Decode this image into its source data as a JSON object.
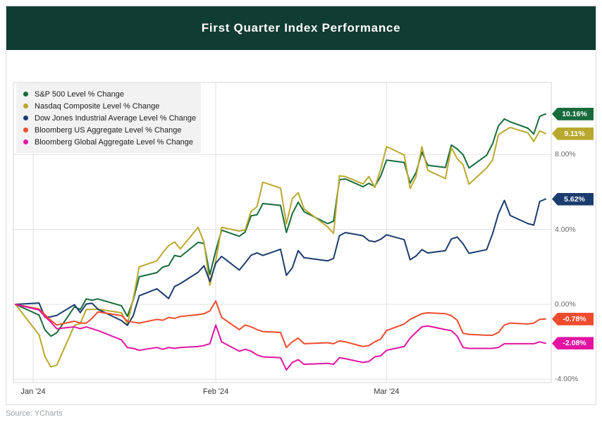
{
  "header": {
    "title": "First Quarter Index Performance",
    "bg_color": "#113c31",
    "text_color": "#ffffff"
  },
  "source": {
    "text": "Source: YCharts"
  },
  "chart_data": {
    "type": "line",
    "title": "First Quarter Index Performance",
    "grid": true,
    "legend_position": "top-left",
    "ylim": [
      -4.2,
      11.9
    ],
    "x_axis": {
      "ticks": [
        {
          "label": "Jan '24",
          "day": 3
        },
        {
          "label": "Feb '24",
          "day": 34
        },
        {
          "label": "Mar '24",
          "day": 63
        }
      ]
    },
    "y_axis": {
      "ticks": [
        {
          "label": "8.00%",
          "value": 8
        },
        {
          "label": "4.00%",
          "value": 4
        },
        {
          "label": "0.00%",
          "value": 0
        },
        {
          "label": "-4.00%",
          "value": -4
        }
      ]
    },
    "dates": [
      "12/29",
      "1/2",
      "1/3",
      "1/4",
      "1/5",
      "1/8",
      "1/9",
      "1/10",
      "1/11",
      "1/12",
      "1/16",
      "1/17",
      "1/18",
      "1/19",
      "1/22",
      "1/23",
      "1/24",
      "1/25",
      "1/26",
      "1/29",
      "1/30",
      "1/31",
      "2/1",
      "2/2",
      "2/5",
      "2/6",
      "2/7",
      "2/8",
      "2/9",
      "2/12",
      "2/13",
      "2/14",
      "2/15",
      "2/16",
      "2/20",
      "2/21",
      "2/22",
      "2/23",
      "2/26",
      "2/27",
      "2/28",
      "2/29",
      "3/1",
      "3/4",
      "3/5",
      "3/6",
      "3/7",
      "3/8",
      "3/11",
      "3/12",
      "3/13",
      "3/14",
      "3/15",
      "3/18",
      "3/19",
      "3/20",
      "3/21",
      "3/22",
      "3/25",
      "3/26",
      "3/27",
      "3/28"
    ],
    "days": [
      0,
      4,
      5,
      6,
      7,
      10,
      11,
      12,
      13,
      14,
      18,
      19,
      20,
      21,
      24,
      25,
      26,
      27,
      28,
      31,
      32,
      33,
      34,
      35,
      38,
      39,
      40,
      41,
      42,
      45,
      46,
      47,
      48,
      49,
      53,
      54,
      55,
      56,
      59,
      60,
      61,
      62,
      63,
      66,
      67,
      68,
      69,
      70,
      73,
      74,
      75,
      76,
      77,
      80,
      81,
      82,
      83,
      84,
      87,
      88,
      89,
      90
    ],
    "series": [
      {
        "name": "S&P 500 Level % Change",
        "color": "#176b3c",
        "end_label": "10.16%",
        "values": [
          0,
          -0.57,
          -1.36,
          -1.7,
          -1.52,
          -0.13,
          -0.28,
          0.29,
          0.22,
          0.29,
          -0.08,
          -0.64,
          0.23,
          1.47,
          1.69,
          1.99,
          2.07,
          2.61,
          2.54,
          3.31,
          3.25,
          1.59,
          2.86,
          3.96,
          3.63,
          3.87,
          4.72,
          4.78,
          5.38,
          5.28,
          3.84,
          4.84,
          5.45,
          4.94,
          4.31,
          4.44,
          6.65,
          6.69,
          6.28,
          6.46,
          6.29,
          6.84,
          7.7,
          7.57,
          6.47,
          7.02,
          8.12,
          7.42,
          7.3,
          8.5,
          8.29,
          7.98,
          7.28,
          7.96,
          8.57,
          9.53,
          9.89,
          9.74,
          9.4,
          9.09,
          10.03,
          10.16
        ]
      },
      {
        "name": "Nasdaq Composite Level % Change",
        "color": "#b9a82f",
        "end_label": "9.11%",
        "values": [
          0,
          -1.63,
          -2.79,
          -3.34,
          -3.25,
          -1.12,
          -1.02,
          -0.28,
          -0.27,
          -0.26,
          -0.45,
          -1.04,
          0.3,
          2.0,
          2.32,
          2.76,
          3.13,
          3.33,
          2.96,
          4.11,
          3.32,
          1.02,
          2.33,
          4.11,
          3.91,
          3.98,
          4.96,
          5.21,
          6.52,
          6.2,
          4.29,
          5.65,
          5.96,
          5.09,
          4.13,
          3.79,
          6.86,
          6.82,
          6.43,
          6.82,
          6.24,
          7.2,
          8.42,
          7.97,
          6.18,
          6.8,
          8.41,
          7.15,
          6.71,
          8.36,
          7.77,
          7.44,
          6.41,
          7.28,
          7.7,
          9.05,
          9.26,
          9.44,
          9.15,
          8.69,
          9.25,
          9.11
        ]
      },
      {
        "name": "Dow Jones Industrial Average Level % Change",
        "color": "#1b3c6e",
        "end_label": "5.62%",
        "values": [
          0,
          0.07,
          -0.69,
          -0.66,
          -0.59,
          -0.02,
          -0.44,
          0.02,
          0.06,
          -0.26,
          -0.87,
          -1.12,
          -0.59,
          0.46,
          0.83,
          0.57,
          0.31,
          0.95,
          1.11,
          1.71,
          2.06,
          1.22,
          2.2,
          2.56,
          1.83,
          2.21,
          2.62,
          2.75,
          2.61,
          2.94,
          1.55,
          1.95,
          2.87,
          2.49,
          2.32,
          2.45,
          3.66,
          3.83,
          3.66,
          3.4,
          3.34,
          3.47,
          3.71,
          3.45,
          2.38,
          2.58,
          2.92,
          2.74,
          2.87,
          3.49,
          3.59,
          3.23,
          2.72,
          2.92,
          3.77,
          4.84,
          5.55,
          4.74,
          4.31,
          4.23,
          5.49,
          5.62
        ]
      },
      {
        "name": "Bloomberg US Aggregate Level % Change",
        "color": "#f04b2e",
        "end_label": "-0.78%",
        "values": [
          0,
          -0.25,
          -0.55,
          -0.85,
          -1.1,
          -0.9,
          -1.0,
          -1.0,
          -0.75,
          -0.4,
          -0.6,
          -0.9,
          -0.95,
          -1.0,
          -0.8,
          -0.85,
          -0.7,
          -0.75,
          -0.65,
          -0.55,
          -0.5,
          -0.35,
          0.18,
          -0.7,
          -1.35,
          -1.1,
          -1.2,
          -1.35,
          -1.45,
          -1.5,
          -2.3,
          -2.0,
          -1.8,
          -2.1,
          -2.05,
          -2.1,
          -1.95,
          -2.0,
          -2.25,
          -2.2,
          -2.0,
          -1.85,
          -1.4,
          -1.05,
          -0.8,
          -0.65,
          -0.5,
          -0.45,
          -0.5,
          -0.6,
          -0.85,
          -1.55,
          -1.6,
          -1.65,
          -1.65,
          -1.5,
          -1.1,
          -1.0,
          -1.05,
          -1.0,
          -0.8,
          -0.78
        ]
      },
      {
        "name": "Bloomberg Global Aggregate Level % Change",
        "color": "#e314a2",
        "end_label": "-2.08%",
        "values": [
          0,
          -0.3,
          -0.65,
          -0.95,
          -1.3,
          -1.2,
          -1.3,
          -1.2,
          -1.3,
          -1.4,
          -1.9,
          -2.3,
          -2.35,
          -2.45,
          -2.3,
          -2.4,
          -2.3,
          -2.35,
          -2.3,
          -2.25,
          -2.2,
          -2.1,
          -1.1,
          -2.0,
          -2.5,
          -2.4,
          -2.5,
          -2.7,
          -2.8,
          -2.85,
          -3.5,
          -3.1,
          -2.95,
          -3.2,
          -3.15,
          -3.2,
          -2.85,
          -2.9,
          -3.1,
          -3.05,
          -2.8,
          -2.75,
          -2.45,
          -2.25,
          -1.8,
          -1.5,
          -1.2,
          -1.15,
          -1.35,
          -1.4,
          -1.7,
          -2.3,
          -2.35,
          -2.35,
          -2.35,
          -2.3,
          -2.1,
          -2.1,
          -2.1,
          -2.1,
          -2.0,
          -2.08
        ]
      }
    ]
  }
}
